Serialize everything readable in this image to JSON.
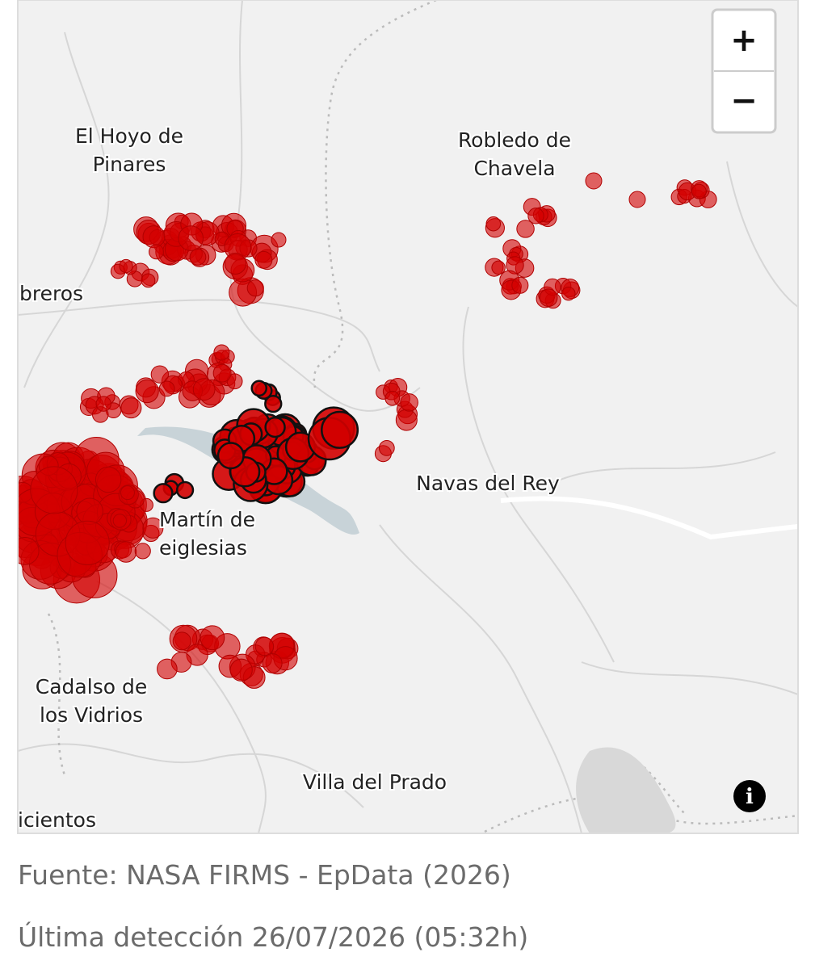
{
  "map": {
    "zoom_in": "+",
    "zoom_out": "−",
    "info": "i",
    "places": [
      {
        "lines": [
          "El Hoyo de",
          "Pinares"
        ]
      },
      {
        "lines": [
          "Robledo de",
          "Chavela"
        ]
      },
      {
        "lines": [
          "breros"
        ]
      },
      {
        "lines": [
          "Martín de",
          "eiglesias"
        ]
      },
      {
        "lines": [
          "Navas del Rey"
        ]
      },
      {
        "lines": [
          "Cadalso de",
          "los Vidrios"
        ]
      },
      {
        "lines": [
          "Villa del Prado"
        ]
      },
      {
        "lines": [
          "icientos"
        ]
      }
    ]
  },
  "footer": {
    "source": "Fuente: NASA FIRMS - EpData (2026)",
    "last_detection": "Última detección 26/07/2026 (05:32h)"
  }
}
